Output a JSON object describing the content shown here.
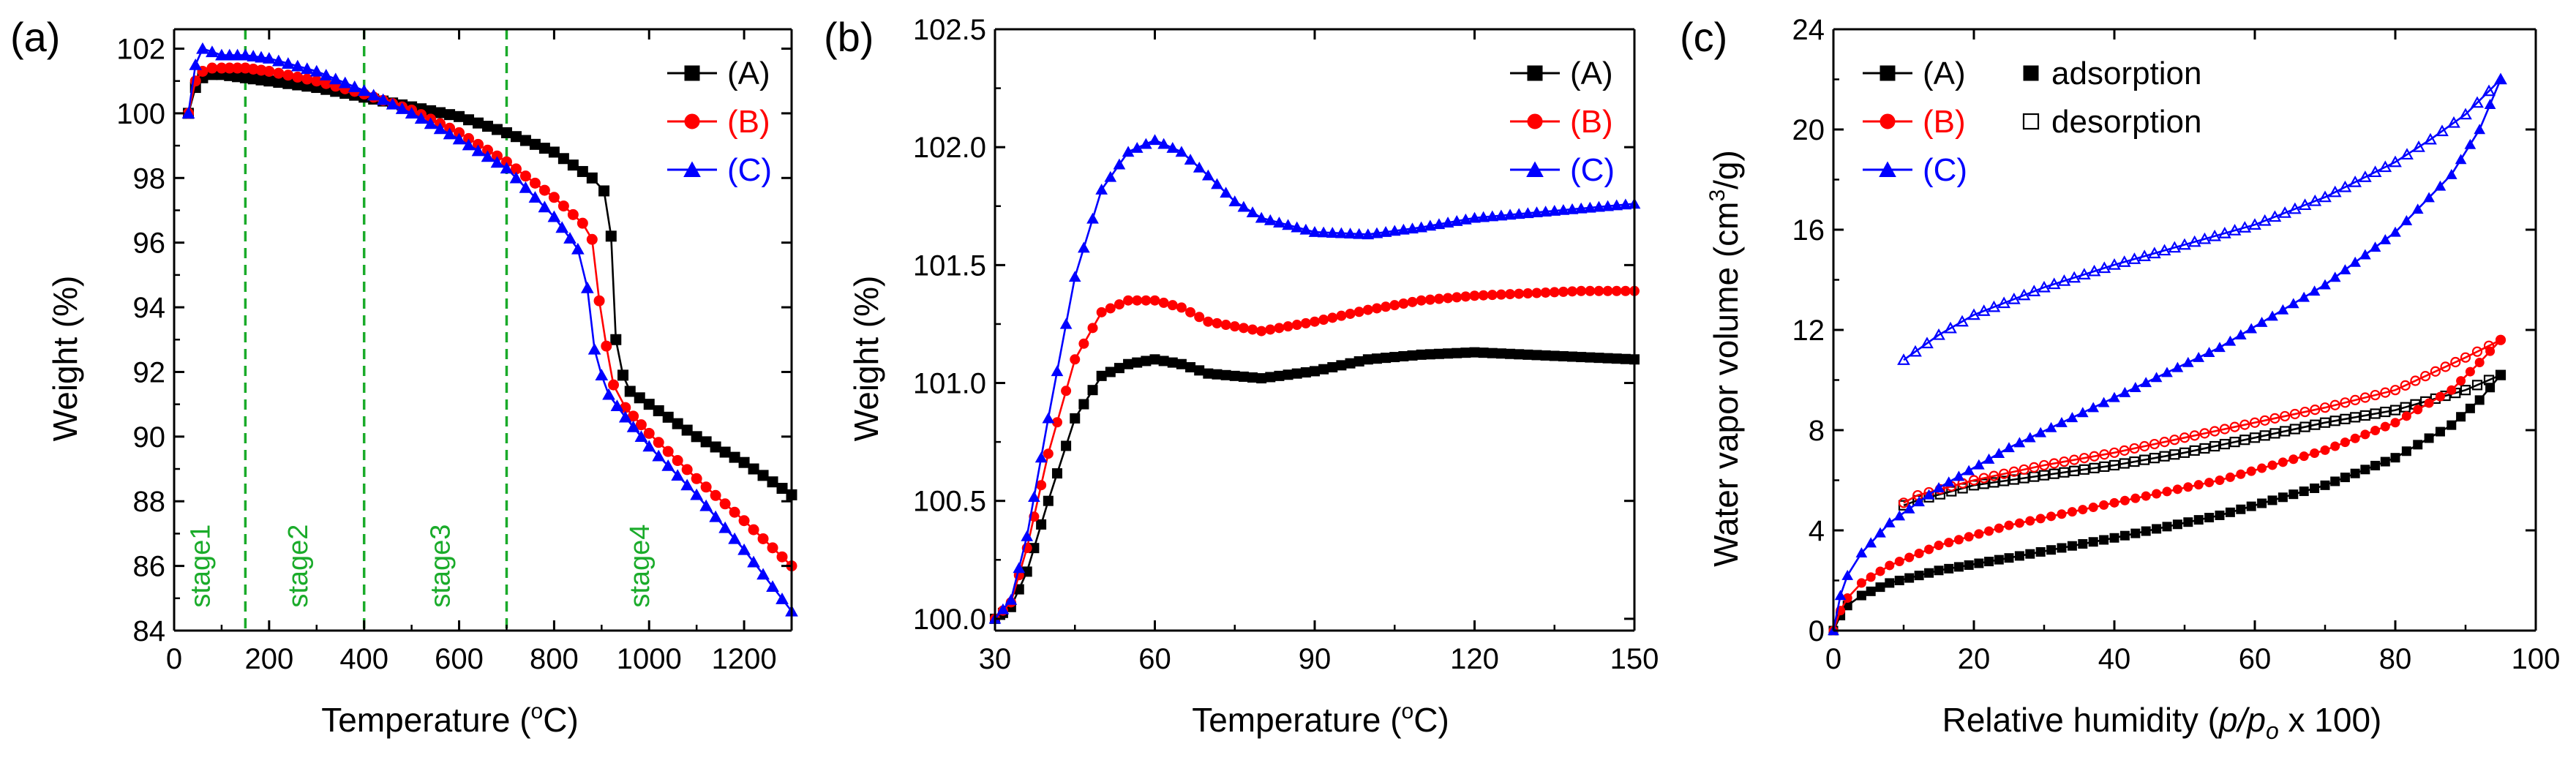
{
  "colors": {
    "A": "#000000",
    "B": "#ff0000",
    "C": "#0000ff",
    "stage": "#1aab2a"
  },
  "chart_data": [
    {
      "panel": "(a)",
      "type": "line",
      "xlabel_pre": "Temperature (",
      "xlabel_sup": "o",
      "xlabel_post": "C)",
      "ylabel": "Weight (%)",
      "xlim": [
        0,
        1300
      ],
      "ylim": [
        84,
        102.6
      ],
      "xticks": [
        0,
        200,
        400,
        600,
        800,
        1000,
        1200
      ],
      "xtick_labels": [
        "0",
        "200",
        "400",
        "600",
        "800",
        "1000",
        "1200"
      ],
      "yticks": [
        84,
        86,
        88,
        90,
        92,
        94,
        96,
        98,
        100,
        102
      ],
      "ytick_labels": [
        "84",
        "86",
        "88",
        "90",
        "92",
        "94",
        "96",
        "98",
        "100",
        "102"
      ],
      "series": [
        {
          "name": "(A)",
          "key": "A",
          "marker": "square",
          "x": [
            30,
            45,
            60,
            80,
            100,
            150,
            200,
            300,
            400,
            500,
            600,
            700,
            800,
            880,
            905,
            920,
            930,
            945,
            960,
            1000,
            1100,
            1200,
            1300
          ],
          "y": [
            100.0,
            100.8,
            101.1,
            101.2,
            101.2,
            101.1,
            101.0,
            100.8,
            100.5,
            100.2,
            99.9,
            99.4,
            98.8,
            98.0,
            97.6,
            96.2,
            93.0,
            91.9,
            91.4,
            91.0,
            90.0,
            89.2,
            88.2
          ]
        },
        {
          "name": "(B)",
          "key": "B",
          "marker": "circle",
          "x": [
            30,
            45,
            60,
            80,
            100,
            150,
            200,
            300,
            400,
            500,
            600,
            700,
            800,
            860,
            880,
            895,
            910,
            925,
            950,
            1000,
            1100,
            1200,
            1300
          ],
          "y": [
            100.0,
            101.0,
            101.3,
            101.4,
            101.4,
            101.4,
            101.3,
            101.0,
            100.6,
            100.1,
            99.4,
            98.5,
            97.4,
            96.6,
            96.1,
            94.2,
            92.8,
            91.6,
            90.9,
            90.1,
            88.7,
            87.4,
            86.0
          ]
        },
        {
          "name": "(C)",
          "key": "C",
          "marker": "triangle",
          "x": [
            30,
            45,
            60,
            80,
            100,
            150,
            200,
            300,
            400,
            500,
            600,
            700,
            800,
            850,
            870,
            885,
            900,
            915,
            950,
            1000,
            1100,
            1200,
            1300
          ],
          "y": [
            100.0,
            101.5,
            102.0,
            101.9,
            101.8,
            101.8,
            101.7,
            101.3,
            100.7,
            100.0,
            99.2,
            98.3,
            96.8,
            95.8,
            94.6,
            92.7,
            91.9,
            91.3,
            90.6,
            89.7,
            88.2,
            86.5,
            84.6
          ]
        }
      ],
      "stage_lines_x": [
        150,
        400,
        700
      ],
      "stage_labels": [
        {
          "text": "stage1",
          "x": 75,
          "y": 86
        },
        {
          "text": "stage2",
          "x": 280,
          "y": 86
        },
        {
          "text": "stage3",
          "x": 580,
          "y": 86
        },
        {
          "text": "stage4",
          "x": 1000,
          "y": 86
        }
      ]
    },
    {
      "panel": "(b)",
      "type": "line",
      "xlabel_pre": "Temperature (",
      "xlabel_sup": "o",
      "xlabel_post": "C)",
      "ylabel": "Weight (%)",
      "xlim": [
        30,
        150
      ],
      "ylim": [
        99.95,
        102.5
      ],
      "xticks": [
        30,
        60,
        90,
        120,
        150
      ],
      "xtick_labels": [
        "30",
        "60",
        "90",
        "120",
        "150"
      ],
      "yticks": [
        100.0,
        100.5,
        101.0,
        101.5,
        102.0,
        102.5
      ],
      "ytick_labels": [
        "100.0",
        "100.5",
        "101.0",
        "101.5",
        "102.0",
        "102.5"
      ],
      "series": [
        {
          "name": "(A)",
          "key": "A",
          "marker": "square",
          "x": [
            30,
            33,
            36,
            40,
            45,
            50,
            55,
            60,
            65,
            70,
            80,
            90,
            100,
            110,
            120,
            130,
            140,
            150
          ],
          "y": [
            100.0,
            100.05,
            100.2,
            100.5,
            100.85,
            101.03,
            101.08,
            101.1,
            101.08,
            101.04,
            101.02,
            101.05,
            101.1,
            101.12,
            101.13,
            101.12,
            101.11,
            101.1
          ]
        },
        {
          "name": "(B)",
          "key": "B",
          "marker": "circle",
          "x": [
            30,
            33,
            36,
            40,
            45,
            50,
            55,
            60,
            65,
            70,
            80,
            90,
            100,
            110,
            120,
            130,
            140,
            150
          ],
          "y": [
            100.0,
            100.07,
            100.3,
            100.7,
            101.1,
            101.3,
            101.35,
            101.35,
            101.32,
            101.26,
            101.22,
            101.26,
            101.31,
            101.35,
            101.37,
            101.38,
            101.39,
            101.39
          ]
        },
        {
          "name": "(C)",
          "key": "C",
          "marker": "triangle",
          "x": [
            30,
            33,
            36,
            40,
            45,
            50,
            55,
            60,
            65,
            70,
            75,
            80,
            90,
            100,
            110,
            120,
            130,
            140,
            150
          ],
          "y": [
            100.0,
            100.08,
            100.35,
            100.85,
            101.45,
            101.82,
            101.98,
            102.03,
            101.98,
            101.88,
            101.77,
            101.7,
            101.64,
            101.63,
            101.66,
            101.7,
            101.72,
            101.74,
            101.76
          ]
        }
      ]
    },
    {
      "panel": "(c)",
      "type": "line",
      "xlabel_pre": "Relative humidity (",
      "xlabel_it": "p/p",
      "xlabel_sub": "o",
      "xlabel_post": " x 100)",
      "ylabel_pre": "Water vapor volume (cm",
      "ylabel_sup": "3",
      "ylabel_post": "/g)",
      "xlim": [
        0,
        100
      ],
      "ylim": [
        0,
        24
      ],
      "xticks": [
        0,
        20,
        40,
        60,
        80,
        100
      ],
      "xtick_labels": [
        "0",
        "20",
        "40",
        "60",
        "80",
        "100"
      ],
      "yticks": [
        0,
        4,
        8,
        12,
        16,
        20,
        24
      ],
      "ytick_labels": [
        "0",
        "4",
        "8",
        "12",
        "16",
        "20",
        "24"
      ],
      "series": [
        {
          "name": "(A) adsorption",
          "key": "A",
          "marker": "square",
          "filled": true,
          "x": [
            0,
            1,
            2,
            4,
            8,
            15,
            25,
            40,
            55,
            70,
            80,
            88,
            92,
            95
          ],
          "y": [
            0,
            0.6,
            1.0,
            1.4,
            1.9,
            2.4,
            2.9,
            3.7,
            4.6,
            5.8,
            6.9,
            8.2,
            9.2,
            10.2
          ]
        },
        {
          "name": "(A) desorption",
          "key": "A",
          "marker": "square",
          "filled": false,
          "x": [
            95,
            90,
            80,
            70,
            60,
            50,
            40,
            30,
            20,
            12,
            10
          ],
          "y": [
            10.2,
            9.6,
            8.8,
            8.3,
            7.7,
            7.1,
            6.6,
            6.2,
            5.8,
            5.2,
            5.0
          ]
        },
        {
          "name": "(B) adsorption",
          "key": "B",
          "marker": "circle",
          "filled": true,
          "x": [
            0,
            1,
            2,
            4,
            8,
            15,
            25,
            40,
            55,
            70,
            80,
            88,
            92,
            95
          ],
          "y": [
            0,
            0.8,
            1.3,
            1.9,
            2.6,
            3.4,
            4.2,
            5.1,
            6.0,
            7.2,
            8.3,
            9.6,
            10.7,
            11.6
          ]
        },
        {
          "name": "(B) desorption",
          "key": "B",
          "marker": "circle",
          "filled": false,
          "x": [
            95,
            90,
            80,
            70,
            60,
            50,
            40,
            30,
            20,
            12,
            10
          ],
          "y": [
            11.6,
            10.9,
            9.6,
            8.9,
            8.3,
            7.7,
            7.1,
            6.6,
            6.0,
            5.4,
            5.1
          ]
        },
        {
          "name": "(C) adsorption",
          "key": "C",
          "marker": "triangle",
          "filled": true,
          "x": [
            0,
            1,
            2,
            4,
            8,
            15,
            25,
            40,
            55,
            70,
            80,
            88,
            92,
            95
          ],
          "y": [
            0,
            1.4,
            2.2,
            3.1,
            4.3,
            5.7,
            7.3,
            9.3,
            11.3,
            13.8,
            15.9,
            18.2,
            20.0,
            22.0
          ]
        },
        {
          "name": "(C) desorption",
          "key": "C",
          "marker": "triangle",
          "filled": false,
          "x": [
            95,
            90,
            85,
            80,
            70,
            60,
            50,
            40,
            30,
            20,
            15,
            10
          ],
          "y": [
            22.0,
            20.6,
            19.6,
            18.7,
            17.3,
            16.2,
            15.4,
            14.6,
            13.7,
            12.6,
            11.8,
            10.8
          ]
        }
      ],
      "legend2": {
        "filled_label": "adsorption",
        "open_label": "desorption"
      }
    }
  ],
  "legend_labels": {
    "A": "(A)",
    "B": "(B)",
    "C": "(C)"
  }
}
